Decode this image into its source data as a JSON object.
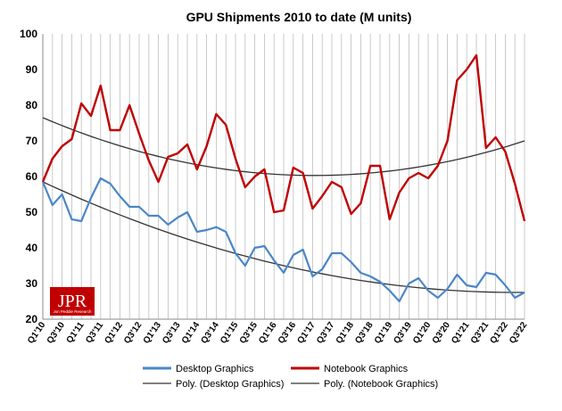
{
  "chart_data": {
    "type": "line",
    "title": "GPU Shipments 2010 to date (M units)",
    "xlabel": "",
    "ylabel": "",
    "ylim": [
      20,
      100
    ],
    "yticks": [
      20,
      30,
      40,
      50,
      60,
      70,
      80,
      90,
      100
    ],
    "categories": [
      "Q1'10",
      "Q2'10",
      "Q3'10",
      "Q4'10",
      "Q1'11",
      "Q2'11",
      "Q3'11",
      "Q4'11",
      "Q1'12",
      "Q2'12",
      "Q3'12",
      "Q4'12",
      "Q1'13",
      "Q2'13",
      "Q3'13",
      "Q4'13",
      "Q1'14",
      "Q2'14",
      "Q3'14",
      "Q4'14",
      "Q1'15",
      "Q2'15",
      "Q3'15",
      "Q4'15",
      "Q1'16",
      "Q2'16",
      "Q3'16",
      "Q4'16",
      "Q1'17",
      "Q2'17",
      "Q3'17",
      "Q4'17",
      "Q1'18",
      "Q2'18",
      "Q3'18",
      "Q4'18",
      "Q1'19",
      "Q2'19",
      "Q3'19",
      "Q4'19",
      "Q1'20",
      "Q2'20",
      "Q3'20",
      "Q4'20",
      "Q1'21",
      "Q2'21",
      "Q3'21",
      "Q4'21",
      "Q1'22",
      "Q2'22",
      "Q3'22"
    ],
    "tick_labels": [
      "Q1'10",
      "Q3'10",
      "Q1'11",
      "Q3'11",
      "Q1'12",
      "Q3'12",
      "Q1'13",
      "Q3'13",
      "Q1'14",
      "Q3'14",
      "Q1'15",
      "Q3'15",
      "Q1'16",
      "Q3'16",
      "Q1'17",
      "Q3'17",
      "Q1'18",
      "Q3'18",
      "Q1'19",
      "Q3'19",
      "Q1'20",
      "Q3'20",
      "Q1'21",
      "Q3'21",
      "Q1'22",
      "Q3'22"
    ],
    "series": [
      {
        "name": "Desktop Graphics",
        "color": "#4a86c8",
        "values": [
          58.5,
          52,
          55,
          48,
          47.5,
          54,
          59.5,
          58,
          54.5,
          51.5,
          51.5,
          49,
          49,
          46.5,
          48.5,
          50,
          44.5,
          45,
          45.8,
          44.5,
          38.5,
          35,
          40,
          40.5,
          36.5,
          33,
          38,
          39.5,
          32,
          34,
          38.5,
          38.5,
          36,
          33,
          32,
          30.5,
          28,
          25,
          30,
          31.5,
          28,
          26,
          28.5,
          32.5,
          29.5,
          29,
          33,
          32.5,
          29.5,
          26,
          27.5
        ]
      },
      {
        "name": "Notebook Graphics",
        "color": "#c00000",
        "values": [
          58.5,
          65,
          68.5,
          70.5,
          80.5,
          77,
          85.5,
          73,
          73,
          80,
          72,
          64.5,
          58.5,
          65.5,
          66.5,
          69,
          62,
          68.5,
          77.5,
          74.5,
          65,
          57,
          60,
          62,
          50,
          50.5,
          62.5,
          61,
          51,
          54.5,
          58.5,
          57,
          49.5,
          52.5,
          63,
          63,
          48,
          55.5,
          59.5,
          61,
          59.5,
          63,
          70,
          87,
          90,
          94,
          68,
          71,
          67,
          58,
          47.5
        ]
      }
    ],
    "trendlines": [
      {
        "name": "Poly. (Desktop Graphics)",
        "color": "#333333",
        "start": 58.5,
        "middle": 35.0,
        "end": 27.5
      },
      {
        "name": "Poly. (Notebook Graphics)",
        "color": "#333333",
        "start": 76.5,
        "middle": 60.5,
        "end": 70.0
      }
    ],
    "legend_position": "bottom"
  },
  "logo": {
    "name": "JPR",
    "tagline": "Jon Peddie Research",
    "color": "#c00000"
  }
}
